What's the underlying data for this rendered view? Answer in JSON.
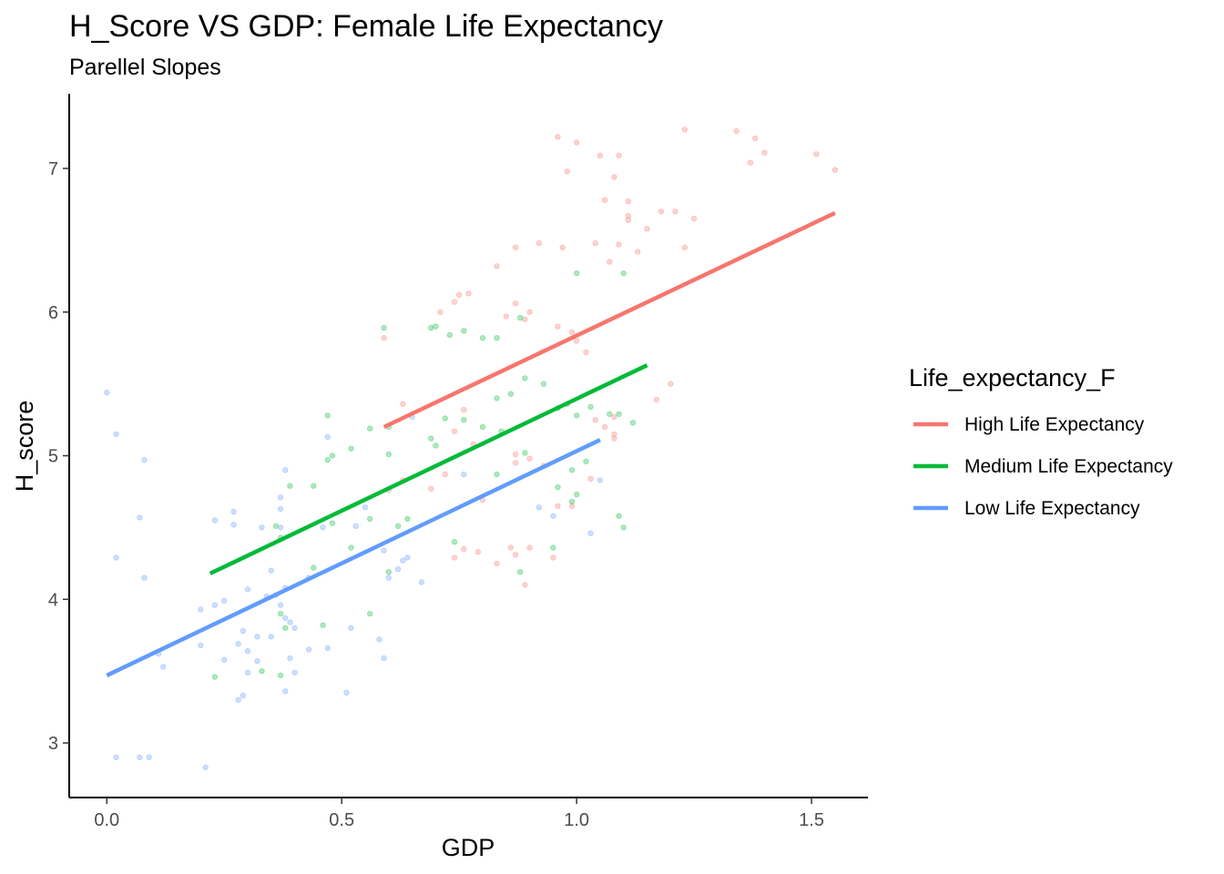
{
  "chart_data": {
    "type": "scatter",
    "title": "H_Score VS GDP: Female Life Expectancy",
    "subtitle": "Parellel Slopes",
    "xlabel": "GDP",
    "ylabel": "H_score",
    "xlim": [
      -0.08,
      1.62
    ],
    "ylim": [
      2.62,
      7.52
    ],
    "x_ticks": [
      0.0,
      0.5,
      1.0,
      1.5
    ],
    "x_tick_labels": [
      "0.0",
      "0.5",
      "1.0",
      "1.5"
    ],
    "y_ticks": [
      3,
      4,
      5,
      6,
      7
    ],
    "y_tick_labels": [
      "3",
      "4",
      "5",
      "6",
      "7"
    ],
    "grid": false,
    "legend": {
      "title": "Life_expectancy_F",
      "placement": "right"
    },
    "series": [
      {
        "name": "High Life Expectancy",
        "color": "#F8766D",
        "fit_line": {
          "x": [
            0.59,
            1.55
          ],
          "y": [
            5.2,
            6.69
          ]
        },
        "points": [
          [
            0.96,
            7.22
          ],
          [
            1.0,
            7.18
          ],
          [
            0.98,
            6.98
          ],
          [
            1.05,
            7.09
          ],
          [
            1.09,
            7.09
          ],
          [
            1.08,
            6.94
          ],
          [
            1.23,
            7.27
          ],
          [
            1.34,
            7.26
          ],
          [
            1.38,
            7.21
          ],
          [
            1.4,
            7.11
          ],
          [
            1.37,
            7.04
          ],
          [
            1.51,
            7.1
          ],
          [
            1.55,
            6.99
          ],
          [
            1.06,
            6.78
          ],
          [
            1.11,
            6.77
          ],
          [
            1.11,
            6.67
          ],
          [
            1.11,
            6.64
          ],
          [
            1.18,
            6.7
          ],
          [
            1.21,
            6.7
          ],
          [
            1.25,
            6.65
          ],
          [
            1.15,
            6.58
          ],
          [
            1.23,
            6.45
          ],
          [
            1.09,
            6.47
          ],
          [
            1.04,
            6.48
          ],
          [
            1.13,
            6.42
          ],
          [
            1.07,
            6.35
          ],
          [
            0.87,
            6.45
          ],
          [
            0.92,
            6.48
          ],
          [
            0.97,
            6.45
          ],
          [
            0.83,
            6.32
          ],
          [
            0.75,
            6.12
          ],
          [
            0.77,
            6.13
          ],
          [
            0.74,
            6.07
          ],
          [
            0.71,
            6.0
          ],
          [
            0.85,
            5.97
          ],
          [
            0.87,
            6.06
          ],
          [
            0.9,
            6.0
          ],
          [
            0.89,
            5.95
          ],
          [
            0.96,
            5.9
          ],
          [
            0.99,
            5.86
          ],
          [
            1.0,
            5.8
          ],
          [
            1.02,
            5.72
          ],
          [
            0.59,
            5.82
          ],
          [
            0.63,
            5.36
          ],
          [
            0.76,
            5.32
          ],
          [
            0.74,
            5.17
          ],
          [
            1.2,
            5.5
          ],
          [
            1.17,
            5.39
          ],
          [
            1.04,
            5.25
          ],
          [
            1.08,
            5.27
          ],
          [
            1.06,
            5.2
          ],
          [
            1.08,
            5.15
          ],
          [
            1.08,
            5.12
          ],
          [
            0.78,
            5.08
          ],
          [
            0.87,
            5.01
          ],
          [
            0.9,
            4.98
          ],
          [
            0.87,
            4.95
          ],
          [
            0.93,
            4.93
          ],
          [
            0.72,
            4.87
          ],
          [
            0.69,
            4.77
          ],
          [
            0.6,
            4.76
          ],
          [
            0.63,
            4.83
          ],
          [
            1.03,
            4.84
          ],
          [
            0.8,
            4.69
          ],
          [
            0.99,
            4.65
          ],
          [
            0.76,
            4.35
          ],
          [
            0.74,
            4.29
          ],
          [
            0.79,
            4.33
          ],
          [
            0.86,
            4.36
          ],
          [
            0.87,
            4.31
          ],
          [
            0.9,
            4.36
          ],
          [
            0.95,
            4.29
          ],
          [
            0.96,
            4.65
          ],
          [
            0.83,
            4.25
          ],
          [
            0.89,
            4.1
          ]
        ]
      },
      {
        "name": "Medium Life Expectancy",
        "color": "#00BA38",
        "fit_line": {
          "x": [
            0.22,
            1.15
          ],
          "y": [
            4.18,
            5.63
          ]
        },
        "points": [
          [
            0.59,
            5.89
          ],
          [
            0.69,
            5.89
          ],
          [
            0.7,
            5.9
          ],
          [
            0.73,
            5.84
          ],
          [
            0.76,
            5.87
          ],
          [
            0.8,
            5.82
          ],
          [
            0.83,
            5.82
          ],
          [
            0.88,
            5.96
          ],
          [
            1.0,
            6.27
          ],
          [
            1.1,
            6.27
          ],
          [
            0.89,
            5.54
          ],
          [
            0.93,
            5.5
          ],
          [
            0.86,
            5.43
          ],
          [
            0.83,
            5.4
          ],
          [
            0.96,
            5.33
          ],
          [
            0.98,
            5.36
          ],
          [
            1.0,
            5.28
          ],
          [
            1.03,
            5.34
          ],
          [
            1.07,
            5.29
          ],
          [
            1.09,
            5.29
          ],
          [
            1.12,
            5.23
          ],
          [
            0.72,
            5.26
          ],
          [
            0.76,
            5.25
          ],
          [
            0.69,
            5.12
          ],
          [
            0.7,
            5.07
          ],
          [
            0.8,
            5.2
          ],
          [
            0.84,
            5.17
          ],
          [
            0.6,
            5.2
          ],
          [
            0.56,
            5.19
          ],
          [
            0.6,
            5.01
          ],
          [
            0.52,
            5.05
          ],
          [
            0.48,
            5.0
          ],
          [
            0.47,
            4.97
          ],
          [
            0.44,
            4.79
          ],
          [
            0.39,
            4.79
          ],
          [
            0.47,
            5.28
          ],
          [
            0.83,
            4.87
          ],
          [
            0.89,
            5.02
          ],
          [
            0.99,
            4.9
          ],
          [
            1.02,
            4.96
          ],
          [
            0.96,
            4.78
          ],
          [
            1.0,
            4.73
          ],
          [
            0.99,
            4.68
          ],
          [
            1.09,
            4.58
          ],
          [
            1.1,
            4.5
          ],
          [
            0.56,
            4.56
          ],
          [
            0.64,
            4.56
          ],
          [
            0.62,
            4.51
          ],
          [
            0.48,
            4.53
          ],
          [
            0.36,
            4.51
          ],
          [
            0.37,
            4.43
          ],
          [
            0.52,
            4.36
          ],
          [
            0.44,
            4.22
          ],
          [
            0.6,
            4.19
          ],
          [
            0.37,
            3.9
          ],
          [
            0.56,
            3.9
          ],
          [
            0.46,
            3.82
          ],
          [
            0.38,
            3.8
          ],
          [
            0.74,
            4.4
          ],
          [
            0.88,
            4.19
          ],
          [
            0.95,
            4.36
          ],
          [
            0.23,
            3.46
          ],
          [
            0.33,
            3.5
          ],
          [
            0.37,
            3.47
          ]
        ]
      },
      {
        "name": "Low Life Expectancy",
        "color": "#619CFF",
        "fit_line": {
          "x": [
            0.0,
            1.05
          ],
          "y": [
            3.47,
            5.11
          ]
        },
        "points": [
          [
            0.0,
            5.44
          ],
          [
            0.02,
            5.15
          ],
          [
            0.08,
            4.97
          ],
          [
            0.02,
            4.29
          ],
          [
            0.07,
            4.57
          ],
          [
            0.08,
            4.15
          ],
          [
            0.11,
            3.62
          ],
          [
            0.12,
            3.53
          ],
          [
            0.02,
            2.9
          ],
          [
            0.07,
            2.9
          ],
          [
            0.09,
            2.9
          ],
          [
            0.21,
            2.83
          ],
          [
            0.2,
            3.93
          ],
          [
            0.23,
            3.96
          ],
          [
            0.25,
            3.99
          ],
          [
            0.23,
            4.55
          ],
          [
            0.27,
            4.61
          ],
          [
            0.27,
            4.52
          ],
          [
            0.33,
            4.5
          ],
          [
            0.37,
            4.5
          ],
          [
            0.38,
            4.9
          ],
          [
            0.37,
            4.71
          ],
          [
            0.37,
            4.63
          ],
          [
            0.35,
            4.2
          ],
          [
            0.3,
            4.07
          ],
          [
            0.34,
            4.02
          ],
          [
            0.36,
            4.03
          ],
          [
            0.38,
            4.08
          ],
          [
            0.37,
            3.96
          ],
          [
            0.38,
            3.87
          ],
          [
            0.39,
            3.84
          ],
          [
            0.4,
            3.8
          ],
          [
            0.43,
            4.15
          ],
          [
            0.46,
            4.5
          ],
          [
            0.47,
            5.13
          ],
          [
            0.53,
            4.51
          ],
          [
            0.55,
            4.64
          ],
          [
            0.59,
            4.34
          ],
          [
            0.6,
            4.15
          ],
          [
            0.62,
            4.21
          ],
          [
            0.63,
            4.27
          ],
          [
            0.64,
            4.29
          ],
          [
            0.67,
            4.12
          ],
          [
            0.2,
            3.68
          ],
          [
            0.25,
            3.58
          ],
          [
            0.28,
            3.69
          ],
          [
            0.29,
            3.78
          ],
          [
            0.3,
            3.64
          ],
          [
            0.3,
            3.49
          ],
          [
            0.32,
            3.57
          ],
          [
            0.32,
            3.74
          ],
          [
            0.35,
            3.74
          ],
          [
            0.39,
            3.59
          ],
          [
            0.4,
            3.49
          ],
          [
            0.43,
            3.65
          ],
          [
            0.47,
            3.66
          ],
          [
            0.52,
            3.8
          ],
          [
            0.58,
            3.72
          ],
          [
            0.59,
            3.59
          ],
          [
            0.28,
            3.3
          ],
          [
            0.29,
            3.33
          ],
          [
            0.38,
            3.36
          ],
          [
            0.51,
            3.35
          ],
          [
            0.65,
            5.27
          ],
          [
            0.76,
            4.87
          ],
          [
            0.92,
            4.64
          ],
          [
            0.95,
            4.58
          ],
          [
            1.03,
            4.46
          ],
          [
            1.05,
            4.83
          ]
        ]
      }
    ]
  }
}
